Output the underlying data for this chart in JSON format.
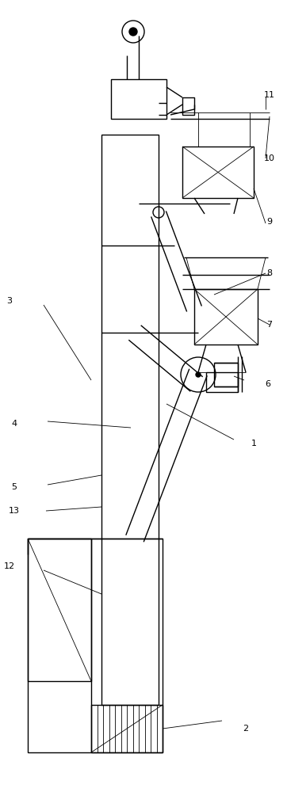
{
  "bg_color": "#ffffff",
  "lc": "#000000",
  "lw": 1.0,
  "tlw": 0.6,
  "label_fs": 8
}
